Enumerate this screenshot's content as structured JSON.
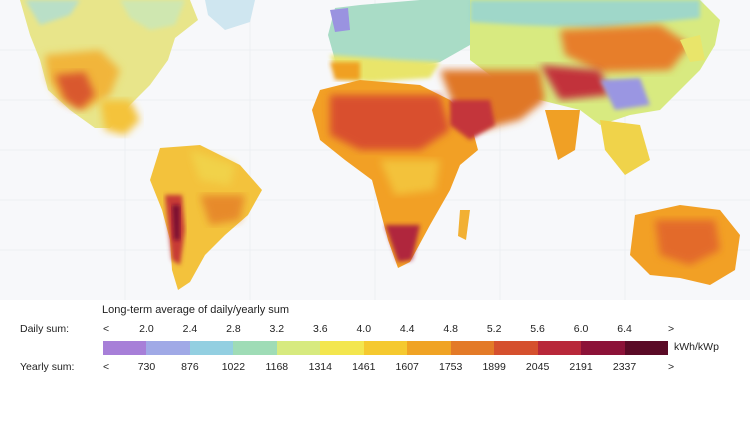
{
  "legend": {
    "title": "Long-term average of daily/yearly sum",
    "daily_label": "Daily sum:",
    "yearly_label": "Yearly sum:",
    "lt_symbol": "<",
    "gt_symbol": ">",
    "unit": "kWh/kWp",
    "daily_values": [
      "2.0",
      "2.4",
      "2.8",
      "3.2",
      "3.6",
      "4.0",
      "4.4",
      "4.8",
      "5.2",
      "5.6",
      "6.0",
      "6.4"
    ],
    "yearly_values": [
      "730",
      "876",
      "1022",
      "1168",
      "1314",
      "1461",
      "1607",
      "1753",
      "1899",
      "2045",
      "2191",
      "2337"
    ],
    "colors": [
      "#a77fd8",
      "#a0a9e6",
      "#93cfe1",
      "#9fdcb6",
      "#d7ea7f",
      "#f3e64e",
      "#f5c92f",
      "#f0a324",
      "#e37a28",
      "#d5502e",
      "#b8283a",
      "#8c1238",
      "#5a0a26"
    ]
  },
  "map": {
    "ocean_color": "#ffffff",
    "grid_color": "#e9edf2"
  }
}
